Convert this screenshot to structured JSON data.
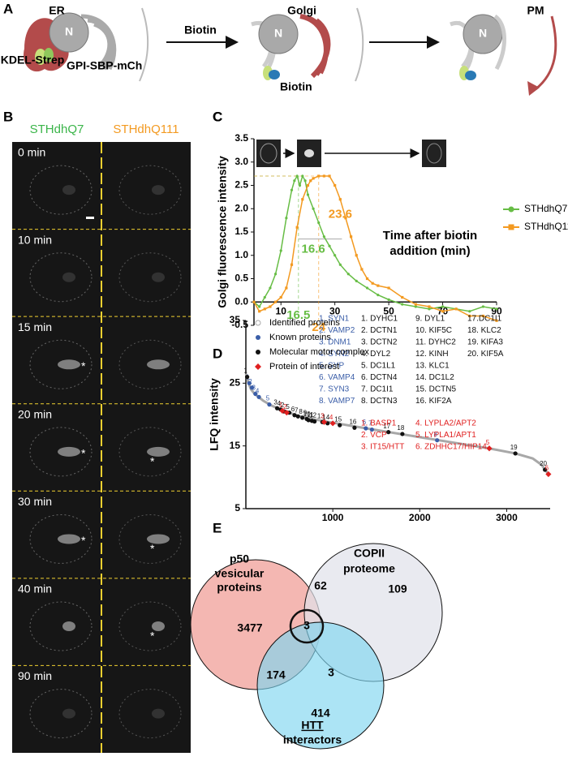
{
  "panel_a": {
    "label": "A",
    "stages": [
      "ER",
      "Golgi",
      "PM"
    ],
    "nucleus": "N",
    "reporter_hook": "KDEL-Strep",
    "reporter_cargo": "GPI-SBP-mCh",
    "arrow_label": "Biotin",
    "biotin": "Biotin"
  },
  "panel_b": {
    "label": "B",
    "columns": [
      "STHdhQ7",
      "STHdhQ111"
    ],
    "rows": [
      "0 min",
      "10 min",
      "15 min",
      "20 min",
      "30 min",
      "40 min",
      "90 min"
    ],
    "asterisk": "*"
  },
  "chart_data": [
    {
      "type": "line",
      "panel": "C",
      "y_label": "Golgi fluorescence intensity",
      "x_label": "Time after biotin addition (min)",
      "xlim": [
        0,
        90
      ],
      "xticks": [
        10,
        30,
        50,
        70,
        90
      ],
      "ylim": [
        -0.5,
        3.5
      ],
      "yticks": [
        -0.5,
        {
          "value": 0,
          "label": "0.0"
        },
        0.5,
        {
          "value": 1,
          "label": "1.0"
        },
        1.5,
        {
          "value": 2,
          "label": "2.0"
        },
        2.5,
        {
          "value": 3,
          "label": "3.0"
        },
        3.5
      ],
      "peak_times": [
        16.5,
        24
      ],
      "half_max_times": [
        16.6,
        23.6
      ],
      "series": [
        {
          "name": "STHdhQ7",
          "color": "#67bd45",
          "marker": "circle",
          "x": [
            0,
            2,
            4,
            6,
            8,
            10,
            12,
            14,
            15,
            16,
            17,
            18,
            19,
            20,
            22,
            24,
            26,
            28,
            30,
            32,
            35,
            38,
            42,
            46,
            50,
            55,
            60,
            65,
            70,
            75,
            80,
            85,
            90
          ],
          "values": [
            0,
            -0.1,
            0.1,
            0.3,
            0.6,
            1.1,
            1.8,
            2.4,
            2.6,
            2.7,
            2.5,
            2.7,
            2.6,
            2.3,
            2.0,
            1.7,
            1.4,
            1.2,
            1.0,
            0.8,
            0.6,
            0.45,
            0.3,
            0.15,
            0.05,
            -0.05,
            -0.1,
            -0.15,
            -0.1,
            -0.15,
            -0.2,
            -0.1,
            -0.15
          ]
        },
        {
          "name": "STHdhQ111",
          "color": "#f39a21",
          "marker": "square",
          "x": [
            0,
            2,
            4,
            6,
            8,
            10,
            12,
            14,
            16,
            18,
            20,
            21,
            22,
            24,
            26,
            28,
            30,
            32,
            34,
            36,
            38,
            40,
            42,
            44,
            46,
            50,
            55,
            60,
            65,
            70,
            75,
            80,
            85,
            90
          ],
          "values": [
            0,
            -0.2,
            -0.15,
            -0.1,
            0,
            0.1,
            0.3,
            0.8,
            1.6,
            2.2,
            2.5,
            2.6,
            2.65,
            2.7,
            2.7,
            2.7,
            2.5,
            2.2,
            1.8,
            1.4,
            1.0,
            0.7,
            0.5,
            0.4,
            0.35,
            0.3,
            0.1,
            -0.05,
            -0.1,
            -0.2,
            -0.15,
            -0.3,
            -0.3,
            -0.4
          ]
        }
      ]
    },
    {
      "type": "scatter",
      "panel": "D",
      "y_label": "LFQ intensity",
      "xlim": [
        0,
        3500
      ],
      "xticks": [
        1000,
        2000,
        3000
      ],
      "ylim": [
        5,
        35
      ],
      "yticks": [
        5,
        15,
        25,
        35
      ],
      "series": [
        {
          "name": "Identified proteins",
          "color": "#a8a8a8",
          "marker": "line",
          "x": [
            1,
            30,
            60,
            100,
            200,
            300,
            400,
            600,
            800,
            1000,
            1300,
            1600,
            2000,
            2400,
            2800,
            3100,
            3300,
            3400,
            3480
          ],
          "values": [
            26.5,
            25,
            24,
            23.3,
            22.2,
            21.4,
            20.8,
            19.8,
            19.2,
            18.7,
            18,
            17.3,
            16.4,
            15.5,
            14.6,
            13.8,
            13,
            12,
            10.5
          ]
        },
        {
          "name": "Known proteins",
          "color": "#3b5ea8",
          "marker": "circle",
          "x": [
            40,
            70,
            110,
            150,
            270,
            1380,
            1450,
            2200
          ],
          "values": [
            25.0,
            24.3,
            23.3,
            22.8,
            21.6,
            17.8,
            17.6,
            15.9
          ],
          "point_labels": [
            "1",
            "2",
            "3",
            "4",
            "5",
            "6",
            "7",
            "8"
          ],
          "members": [
            "1. SYN1",
            "2. VAMP2",
            "3. DNM1",
            "4. SYN2",
            "5. SYP",
            "6. VAMP4",
            "7. SYN3",
            "8. VAMP7"
          ]
        },
        {
          "name": "Molecular motor complex",
          "color": "#111111",
          "marker": "circle",
          "x": [
            15,
            440,
            360,
            400,
            500,
            560,
            600,
            650,
            700,
            720,
            760,
            790,
            880,
            940,
            1080,
            1250,
            1640,
            1800,
            3100,
            3440
          ],
          "values": [
            26.0,
            20.5,
            21.0,
            20.8,
            20.3,
            19.9,
            19.7,
            19.5,
            19.3,
            19.1,
            19.0,
            18.9,
            18.8,
            18.6,
            18.3,
            17.9,
            17.2,
            16.9,
            13.8,
            11.2
          ],
          "point_labels": [
            "1",
            "2",
            "3",
            "4",
            "5",
            "6",
            "7",
            "8",
            "9",
            "10",
            "11",
            "12",
            "13",
            "14",
            "15",
            "16",
            "17",
            "18",
            "19",
            "20"
          ],
          "members": [
            "1. DYHC1",
            "2. DCTN1",
            "3. DCTN2",
            "4. DYL2",
            "5. DC1L1",
            "6. DCTN4",
            "7. DC1I1",
            "8. DCTN3",
            "9. DYL1",
            "10. KIF5C",
            "11. DYHC2",
            "12. KINH",
            "13. KLC1",
            "14. DC1L2",
            "15. DCTN5",
            "16. KIF2A",
            "17.DC1I1",
            "18. KLC2",
            "19. KIFA3",
            "20. KIF5A"
          ]
        },
        {
          "name": "Protein of interest",
          "color": "#e02020",
          "marker": "diamond",
          "x": [
            420,
            470,
            900,
            1000,
            2800,
            3480
          ],
          "values": [
            20.6,
            20.3,
            18.8,
            18.6,
            14.6,
            10.5
          ],
          "point_labels": [
            "1",
            "2",
            "3",
            "4",
            "5",
            "6"
          ],
          "members": [
            "1. BASP1",
            "2. VCP",
            "3. IT15/HTT",
            "4. LYPLA2/APT2",
            "5. LYPLA1/APT1",
            "6. ZDHHC17/HIP14"
          ]
        }
      ]
    }
  ],
  "panel_e": {
    "label": "E",
    "sets": [
      [
        "p50",
        "vesicular",
        "proteins"
      ],
      [
        "COPII",
        "proteome"
      ],
      [
        "HTT",
        "interactors"
      ]
    ],
    "counts": {
      "p50_only": 3477,
      "p50_copii": 62,
      "copii_only": 109,
      "all": 3,
      "p50_htt": 174,
      "copii_htt": 3,
      "htt_only": 414
    }
  }
}
